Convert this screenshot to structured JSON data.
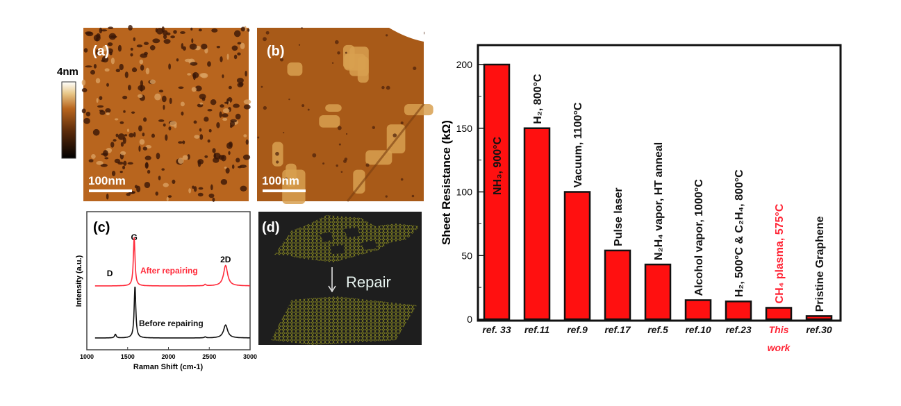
{
  "panels": {
    "a": {
      "label": "(a)",
      "scale_bar": "100nm"
    },
    "b": {
      "label": "(b)",
      "scale_bar": "100nm"
    },
    "colorbar": {
      "label": "4nm"
    },
    "d": {
      "label": "(d)",
      "caption": "Repair"
    }
  },
  "colors": {
    "bar": "#ff1010",
    "highlight": "#ff2233",
    "afm": "#b8651e",
    "panel_d_bg": "#1e1e1e",
    "lattice": "#8a8a20"
  },
  "chart_data": [
    {
      "panel": "(c)",
      "type": "line",
      "xlabel": "Raman Shift (cm-1)",
      "ylabel": "Intensity (a.u.)",
      "xlim": [
        1000,
        3000
      ],
      "xticks": [
        "1000",
        "1500",
        "2000",
        "2500",
        "3000"
      ],
      "peak_labels": [
        {
          "text": "D",
          "x": 1350
        },
        {
          "text": "G",
          "x": 1580
        },
        {
          "text": "2D",
          "x": 2700
        }
      ],
      "series": [
        {
          "name": "After repairing",
          "color": "#ff2a3a",
          "peaks": [
            {
              "x": 1580,
              "height": 1.0
            },
            {
              "x": 2700,
              "height": 0.42
            },
            {
              "x": 2450,
              "height": 0.03
            }
          ]
        },
        {
          "name": "Before repairing",
          "color": "#111111",
          "peaks": [
            {
              "x": 1350,
              "height": 0.07
            },
            {
              "x": 1590,
              "height": 1.0
            },
            {
              "x": 2700,
              "height": 0.25
            },
            {
              "x": 2450,
              "height": 0.02
            }
          ]
        }
      ]
    },
    {
      "type": "bar",
      "ylabel": "Sheet Resistance (kΩ)",
      "ylim": [
        0,
        215
      ],
      "yticks": [
        "0",
        "50",
        "100",
        "150",
        "200"
      ],
      "categories": [
        "ref. 33",
        "ref.11",
        "ref.9",
        "ref.17",
        "ref.5",
        "ref.10",
        "ref.23",
        "This work",
        "ref.30"
      ],
      "values": [
        200,
        150,
        100,
        54,
        43,
        15,
        14,
        9,
        2.5
      ],
      "bar_labels": [
        "NH₃, 900°C",
        "H₂, 800°C",
        "Vacuum, 1100°C",
        "Pulse laser",
        "N₂H₄ vapor, HT anneal",
        "Alcohol vapor, 1000°C",
        "H₂, 500°C & C₂H₄, 800°C",
        "CH₄ plasma, 575°C",
        "Pristine Graphene"
      ],
      "highlight_index": 7
    }
  ]
}
